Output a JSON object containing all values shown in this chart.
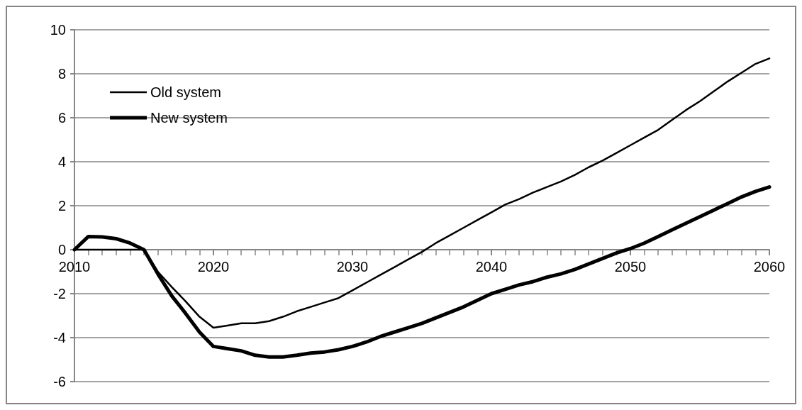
{
  "chart_data": {
    "type": "line",
    "x": [
      2010,
      2011,
      2012,
      2013,
      2014,
      2015,
      2016,
      2017,
      2018,
      2019,
      2020,
      2021,
      2022,
      2023,
      2024,
      2025,
      2026,
      2027,
      2028,
      2029,
      2030,
      2031,
      2032,
      2033,
      2034,
      2035,
      2036,
      2037,
      2038,
      2039,
      2040,
      2041,
      2042,
      2043,
      2044,
      2045,
      2046,
      2047,
      2048,
      2049,
      2050,
      2051,
      2052,
      2053,
      2054,
      2055,
      2056,
      2057,
      2058,
      2059,
      2060
    ],
    "series": [
      {
        "name": "Old system",
        "color": "#000000",
        "values": [
          0,
          0,
          0,
          0,
          0,
          0,
          -1.0,
          -1.7,
          -2.35,
          -3.05,
          -3.55,
          -3.45,
          -3.35,
          -3.35,
          -3.25,
          -3.05,
          -2.8,
          -2.6,
          -2.4,
          -2.2,
          -1.85,
          -1.5,
          -1.15,
          -0.8,
          -0.45,
          -0.1,
          0.3,
          0.65,
          1.0,
          1.35,
          1.7,
          2.05,
          2.3,
          2.6,
          2.85,
          3.1,
          3.4,
          3.75,
          4.05,
          4.4,
          4.75,
          5.1,
          5.45,
          5.9,
          6.35,
          6.75,
          7.2,
          7.65,
          8.05,
          8.45,
          8.7
        ]
      },
      {
        "name": "New system",
        "color": "#000000",
        "values": [
          0,
          0.6,
          0.58,
          0.5,
          0.3,
          0,
          -1.1,
          -2.1,
          -2.9,
          -3.75,
          -4.4,
          -4.5,
          -4.6,
          -4.8,
          -4.88,
          -4.88,
          -4.8,
          -4.7,
          -4.65,
          -4.55,
          -4.4,
          -4.2,
          -3.95,
          -3.75,
          -3.55,
          -3.35,
          -3.1,
          -2.85,
          -2.6,
          -2.3,
          -2.0,
          -1.8,
          -1.6,
          -1.45,
          -1.25,
          -1.1,
          -0.9,
          -0.65,
          -0.4,
          -0.15,
          0.05,
          0.3,
          0.6,
          0.9,
          1.2,
          1.5,
          1.8,
          2.1,
          2.4,
          2.65,
          2.85
        ]
      }
    ],
    "xlim": [
      2010,
      2060
    ],
    "xticks": [
      2010,
      2020,
      2030,
      2040,
      2050,
      2060
    ],
    "ylim": [
      -6,
      10
    ],
    "yticks": [
      -6,
      -4,
      -2,
      0,
      2,
      4,
      6,
      8,
      10
    ],
    "grid": "y",
    "legend": "top left",
    "marker": "none",
    "line_style": "solid"
  }
}
